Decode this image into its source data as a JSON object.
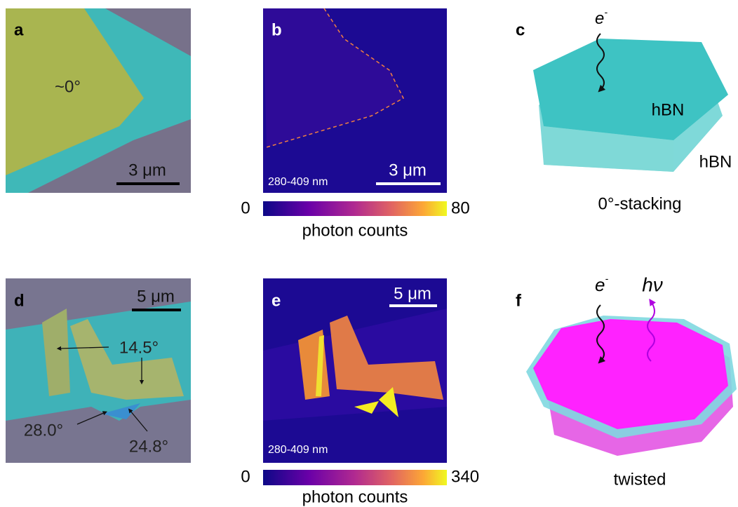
{
  "panels": {
    "a": {
      "label": "a",
      "angle": "~0°",
      "scale_bar": "3 μm"
    },
    "b": {
      "label": "b",
      "wavelength": "280-409 nm",
      "scale_bar": "3 μm",
      "colorbar": {
        "min": "0",
        "max": "80",
        "label": "photon counts"
      }
    },
    "c": {
      "label": "c",
      "electron": "e",
      "electron_sup": "-",
      "layers": [
        "hBN",
        "hBN"
      ],
      "caption": "0°-stacking"
    },
    "d": {
      "label": "d",
      "scale_bar": "5 μm",
      "angles": [
        "14.5°",
        "28.0°",
        "24.8°"
      ]
    },
    "e": {
      "label": "e",
      "wavelength": "280-409 nm",
      "scale_bar": "5 μm",
      "colorbar": {
        "min": "0",
        "max": "340",
        "label": "photon counts"
      }
    },
    "f": {
      "label": "f",
      "electron": "e",
      "electron_sup": "-",
      "photon": "hν",
      "caption": "twisted"
    }
  }
}
